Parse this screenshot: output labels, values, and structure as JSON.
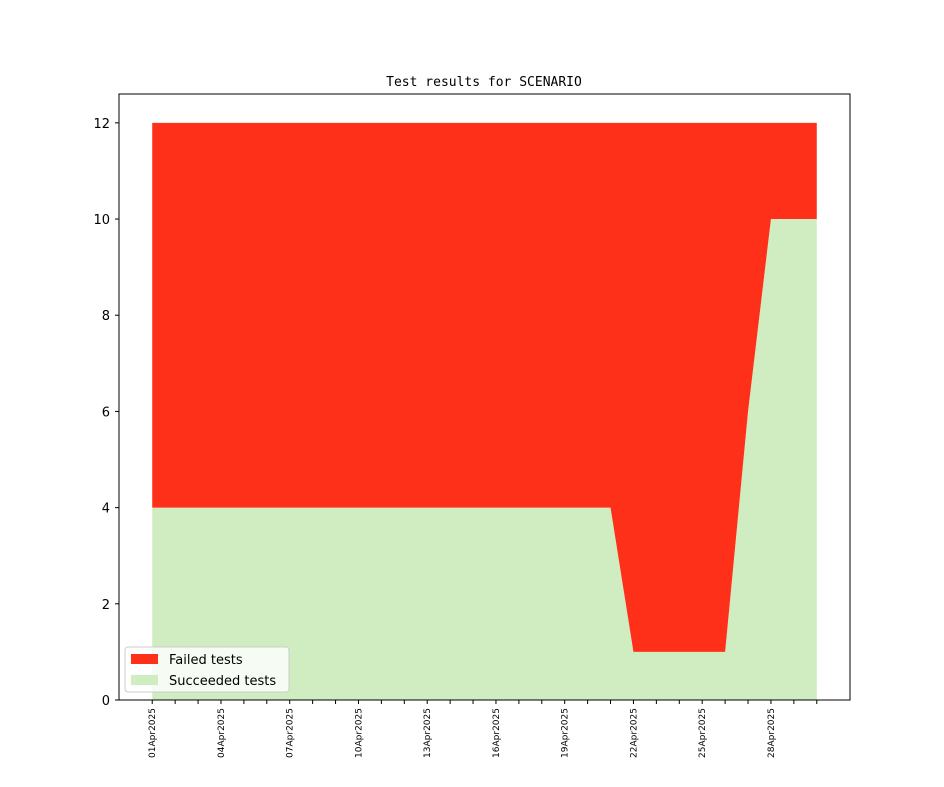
{
  "chart_data": {
    "type": "stacked_area",
    "title": "Test results for SCENARIO",
    "categories": [
      "01Apr2025",
      null,
      null,
      "04Apr2025",
      null,
      null,
      "07Apr2025",
      null,
      null,
      "10Apr2025",
      null,
      null,
      "13Apr2025",
      null,
      null,
      "16Apr2025",
      null,
      null,
      "19Apr2025",
      null,
      null,
      "22Apr2025",
      null,
      null,
      "25Apr2025",
      null,
      null,
      "28Apr2025",
      null,
      null
    ],
    "series": [
      {
        "name": "Failed tests",
        "color": "#ff3019",
        "values": [
          8,
          8,
          8,
          8,
          8,
          8,
          8,
          8,
          8,
          8,
          8,
          8,
          8,
          8,
          8,
          8,
          8,
          8,
          8,
          8,
          8,
          11,
          11,
          11,
          11,
          11,
          6,
          2,
          2,
          2
        ]
      },
      {
        "name": "Succeeded tests",
        "color": "#cfedc0",
        "values": [
          4,
          4,
          4,
          4,
          4,
          4,
          4,
          4,
          4,
          4,
          4,
          4,
          4,
          4,
          4,
          4,
          4,
          4,
          4,
          4,
          4,
          1,
          1,
          1,
          1,
          1,
          6,
          10,
          10,
          10
        ]
      }
    ],
    "ylim": [
      0,
      12.6
    ],
    "yticks": [
      0,
      2,
      4,
      6,
      8,
      10,
      12
    ],
    "legend": "lower left"
  }
}
